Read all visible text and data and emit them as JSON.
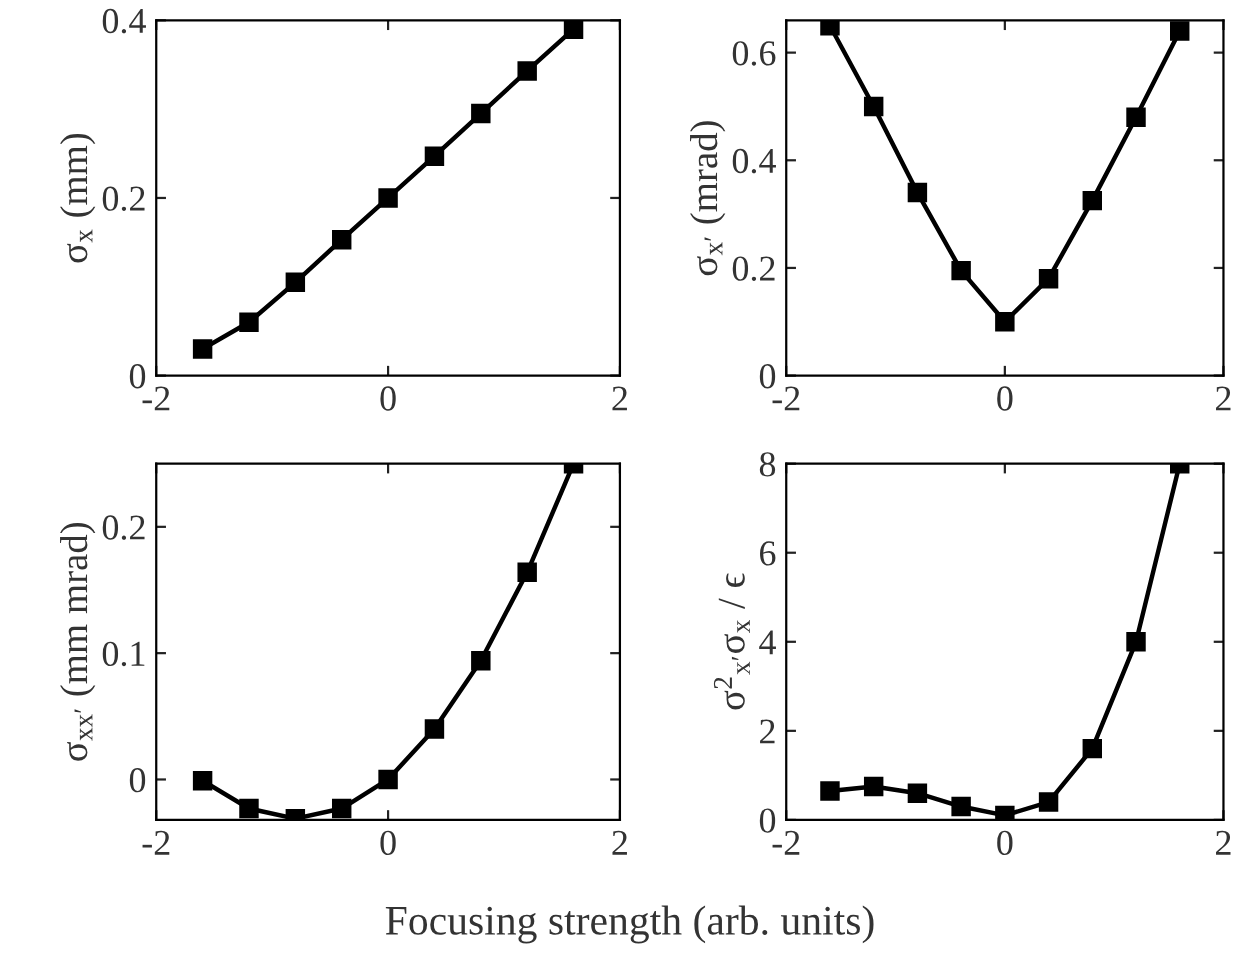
{
  "chart_data": [
    {
      "type": "line",
      "ylabel": "σ$_{x}$ (mm)",
      "x": [
        -1.6,
        -1.2,
        -0.8,
        -0.4,
        0,
        0.4,
        0.8,
        1.2,
        1.6
      ],
      "series": [
        {
          "color": "#000000",
          "values": [
            0.03,
            0.06,
            0.105,
            0.153,
            0.2,
            0.247,
            0.295,
            0.343,
            0.39
          ]
        }
      ],
      "xlim": [
        -2,
        2
      ],
      "xticks": [
        -2,
        0,
        2
      ],
      "ylim": [
        0,
        0.4
      ],
      "yticks": [
        0,
        0.2,
        0.4
      ],
      "marker": "square",
      "line_style": "solid",
      "grid": false
    },
    {
      "type": "line",
      "ylabel": "σ$_{x′}$ (mrad)",
      "x": [
        -1.6,
        -1.2,
        -0.8,
        -0.4,
        0,
        0.4,
        0.8,
        1.2,
        1.6
      ],
      "series": [
        {
          "color": "#000000",
          "values": [
            0.65,
            0.5,
            0.34,
            0.195,
            0.1,
            0.18,
            0.325,
            0.48,
            0.64
          ]
        }
      ],
      "xlim": [
        -2,
        2
      ],
      "xticks": [
        -2,
        0,
        2
      ],
      "ylim": [
        0,
        0.66
      ],
      "yticks": [
        0,
        0.2,
        0.4,
        0.6
      ],
      "marker": "square",
      "line_style": "solid",
      "grid": false
    },
    {
      "type": "line",
      "ylabel": "σ$_{xx′}$ (mm mrad)",
      "xlabel": "Focusing strength (arb. units)",
      "x": [
        -1.6,
        -1.2,
        -0.8,
        -0.4,
        0,
        0.4,
        0.8,
        1.2,
        1.6
      ],
      "series": [
        {
          "color": "#000000",
          "values": [
            -0.001,
            -0.023,
            -0.031,
            -0.023,
            0.0,
            0.04,
            0.094,
            0.164,
            0.25
          ]
        }
      ],
      "xlim": [
        -2,
        2
      ],
      "xticks": [
        -2,
        0,
        2
      ],
      "ylim": [
        -0.032,
        0.25
      ],
      "yticks": [
        0,
        0.1,
        0.2
      ],
      "marker": "square",
      "line_style": "solid",
      "grid": false
    },
    {
      "type": "line",
      "ylabel": "σ$^{2}$$_{x′}$σ$_{x}$ / ϵ",
      "x": [
        -1.6,
        -1.2,
        -0.8,
        -0.4,
        0,
        0.4,
        0.8,
        1.2,
        1.6
      ],
      "series": [
        {
          "color": "#000000",
          "values": [
            0.65,
            0.75,
            0.6,
            0.3,
            0.1,
            0.4,
            1.6,
            4.0,
            8.0
          ]
        }
      ],
      "xlim": [
        -2,
        2
      ],
      "xticks": [
        -2,
        0,
        2
      ],
      "ylim": [
        0,
        8
      ],
      "yticks": [
        0,
        2,
        4,
        6,
        8
      ],
      "marker": "square",
      "line_style": "solid",
      "grid": false
    }
  ]
}
